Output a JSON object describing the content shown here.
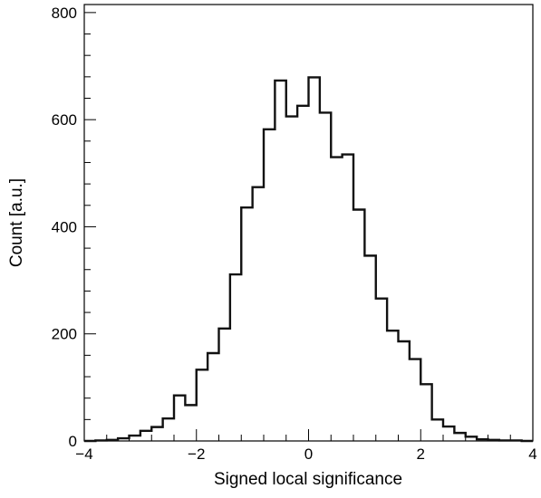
{
  "chart_data": {
    "type": "histogram",
    "title": "",
    "xlabel": "Signed local significance",
    "ylabel": "Count [a.u.]",
    "xlim": [
      -4,
      4
    ],
    "ylim": [
      0,
      815
    ],
    "x_ticks": [
      -4,
      -2,
      0,
      2,
      4
    ],
    "x_tick_labels": [
      "−4",
      "−2",
      "0",
      "2",
      "4"
    ],
    "y_ticks": [
      0,
      200,
      400,
      600,
      800
    ],
    "y_tick_labels": [
      "0",
      "200",
      "400",
      "600",
      "800"
    ],
    "grid": false,
    "legend": "none",
    "line_color": "#111111",
    "bin_width": 0.2,
    "bin_edges_start": -4,
    "bins": [
      {
        "x": -3.9,
        "y": 0
      },
      {
        "x": -3.7,
        "y": 1
      },
      {
        "x": -3.5,
        "y": 2
      },
      {
        "x": -3.3,
        "y": 5
      },
      {
        "x": -3.1,
        "y": 10
      },
      {
        "x": -2.9,
        "y": 19
      },
      {
        "x": -2.7,
        "y": 26
      },
      {
        "x": -2.5,
        "y": 42
      },
      {
        "x": -2.3,
        "y": 85
      },
      {
        "x": -2.1,
        "y": 67
      },
      {
        "x": -1.9,
        "y": 133
      },
      {
        "x": -1.7,
        "y": 164
      },
      {
        "x": -1.5,
        "y": 210
      },
      {
        "x": -1.3,
        "y": 311
      },
      {
        "x": -1.1,
        "y": 436
      },
      {
        "x": -0.9,
        "y": 474
      },
      {
        "x": -0.7,
        "y": 582
      },
      {
        "x": -0.5,
        "y": 673
      },
      {
        "x": -0.3,
        "y": 606
      },
      {
        "x": -0.1,
        "y": 626
      },
      {
        "x": 0.1,
        "y": 679
      },
      {
        "x": 0.3,
        "y": 613
      },
      {
        "x": 0.5,
        "y": 530
      },
      {
        "x": 0.7,
        "y": 535
      },
      {
        "x": 0.9,
        "y": 432
      },
      {
        "x": 1.1,
        "y": 346
      },
      {
        "x": 1.3,
        "y": 266
      },
      {
        "x": 1.5,
        "y": 206
      },
      {
        "x": 1.7,
        "y": 186
      },
      {
        "x": 1.9,
        "y": 153
      },
      {
        "x": 2.1,
        "y": 106
      },
      {
        "x": 2.3,
        "y": 40
      },
      {
        "x": 2.5,
        "y": 27
      },
      {
        "x": 2.7,
        "y": 15
      },
      {
        "x": 2.9,
        "y": 8
      },
      {
        "x": 3.1,
        "y": 3
      },
      {
        "x": 3.3,
        "y": 2
      },
      {
        "x": 3.5,
        "y": 1
      },
      {
        "x": 3.7,
        "y": 1
      },
      {
        "x": 3.9,
        "y": 0
      }
    ]
  }
}
